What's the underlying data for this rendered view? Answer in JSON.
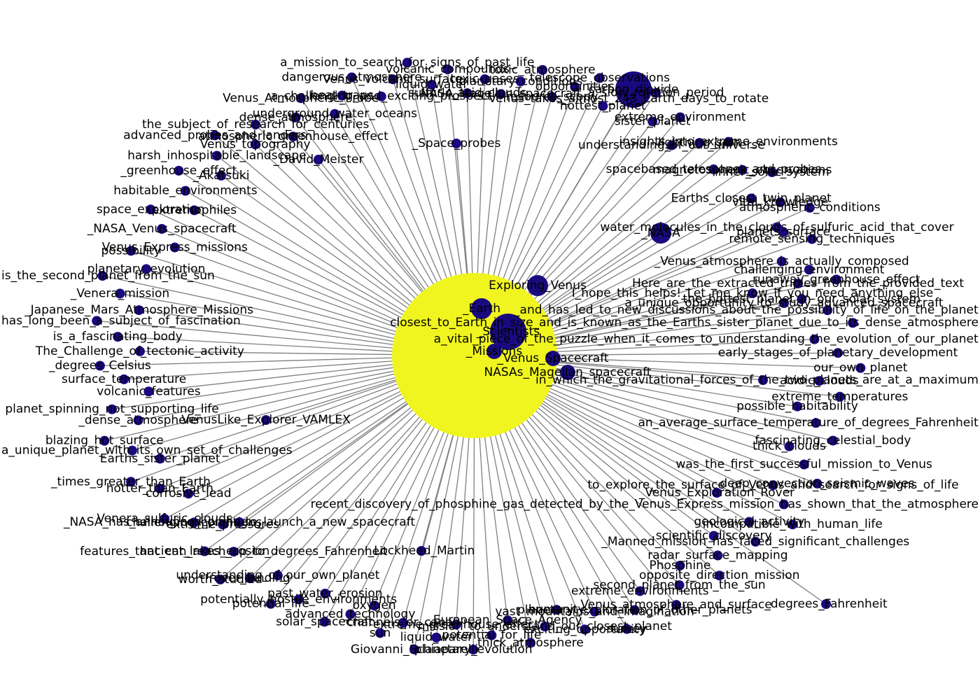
{
  "graph": {
    "hub_color": "#f0f51f",
    "node_color": "#1a0a80",
    "edge_color": "#808080",
    "hub": {
      "label": "Venus",
      "size": "huge"
    },
    "nodes": [
      {
        "label": "Exploring_Venus",
        "size": "large"
      },
      {
        "label": "_Earth",
        "size": "large"
      },
      {
        "label": "_Scientists",
        "size": "xlarge"
      },
      {
        "label": "_Missions",
        "size": "medium"
      },
      {
        "label": "_Venus_Spacecraft",
        "size": "medium"
      },
      {
        "label": "NASAs_Magellan_spacecraft",
        "size": "medium"
      },
      {
        "label": "in_which_the_gravitational_forces_of_the_two_planets_are_at_a_maximum",
        "size": "small"
      },
      {
        "label": "Here_are_the_extracted_triples_from_the_provided_text",
        "size": "small"
      },
      {
        "label": "I_hope_this_helps!_Let_me_know_if_you_need_anything_else",
        "size": "small"
      },
      {
        "label": "a_unique_opportunity_to_study_advanced_spacecraft",
        "size": "small"
      },
      {
        "label": "_NASA",
        "size": "large"
      },
      {
        "label": "water_molecules_in_the_clouds_of_sulfuric_acid_that_cover",
        "size": "small"
      },
      {
        "label": "NASA_Magellan_spacecraft",
        "size": "small"
      },
      {
        "label": "planetary_conditions",
        "size": "small"
      },
      {
        "label": "toxic_atmosphere",
        "size": "small"
      },
      {
        "label": "resource_scopy",
        "size": "small"
      },
      {
        "label": "opportunities",
        "size": "small"
      },
      {
        "label": "telescope_observations",
        "size": "small"
      },
      {
        "label": "hottest_planet",
        "size": "small"
      },
      {
        "label": "Venus_takes_almost_243_Earth_days_to_rotate",
        "size": "small"
      },
      {
        "label": "a_slow_rotation_period",
        "size": "small"
      },
      {
        "label": "sister_planet",
        "size": "small"
      },
      {
        "label": "extreme_environment",
        "size": "small"
      },
      {
        "label": "understanding_of_our_universe",
        "size": "small"
      },
      {
        "label": "lightning_spin",
        "size": "small"
      },
      {
        "label": "insights_into_extreme_environments",
        "size": "small"
      },
      {
        "label": "spacebased_telescopes_and_probes",
        "size": "small"
      },
      {
        "label": "magnetospheric_observations",
        "size": "small"
      },
      {
        "label": "inner_solar_system",
        "size": "small"
      },
      {
        "label": "Earths_closest_twin_planet",
        "size": "small"
      },
      {
        "label": "vital_knowledge",
        "size": "small"
      },
      {
        "label": "_Venus_Exploration_Rover",
        "size": "small"
      },
      {
        "label": "atmospheric_conditions",
        "size": "small"
      },
      {
        "label": "planets_surface",
        "size": "small"
      },
      {
        "label": "remote_sensing_techniques",
        "size": "small"
      },
      {
        "label": "_Venus_atmosphere_is_actually_composed",
        "size": "small"
      },
      {
        "label": "challenging_environment",
        "size": "small"
      },
      {
        "label": "runaway_greenhouse_effect",
        "size": "small"
      },
      {
        "label": "the_hottest_planet_in_our_solar_system",
        "size": "small"
      },
      {
        "label": "_and_has_led_to_new_discussions_about_the_possibility_of_life_on_the_planet",
        "size": "small"
      },
      {
        "label": "_degrees_Fahrenheit",
        "size": "small"
      },
      {
        "label": "_Lockheed_Martin",
        "size": "small"
      },
      {
        "label": "closest_to_Earth_in_size_and_is_known_as_the_Earths_sister_planet_due_to_its_dense_atmosphere",
        "size": "small"
      },
      {
        "label": "a_vital_piece_of_the_puzzle_when_it_comes_to_understanding_the_evolution_of_our_planet",
        "size": "small"
      },
      {
        "label": "early_stages_of_planetary_development",
        "size": "small"
      },
      {
        "label": "our_own_planet",
        "size": "small"
      },
      {
        "label": "acidic_clouds",
        "size": "small"
      },
      {
        "label": "extreme_temperatures",
        "size": "small"
      },
      {
        "label": "possible_habitability",
        "size": "small"
      },
      {
        "label": "an_average_surface_temperature_of_degrees_Fahrenheit",
        "size": "small"
      },
      {
        "label": "fascinating_celestial_body",
        "size": "small"
      },
      {
        "label": "thick_clouds",
        "size": "small"
      },
      {
        "label": "was_the_first_successful_mission_to_Venus",
        "size": "small"
      },
      {
        "label": "deep_convection_seismic_waves",
        "size": "small"
      },
      {
        "label": "to_explore_the_surface_of_Venus_and_search_for_signs_of_life",
        "size": "small"
      },
      {
        "label": "_NASA_has_announced_plans_to_launch_a_new_spacecraft",
        "size": "small"
      },
      {
        "label": "recent_discovery_of_phosphine_gas_detected_by_the_Venus_Express_mission_has_shown_that_the_atmosphere",
        "size": "small"
      },
      {
        "label": "incompatible_with_human_life",
        "size": "small"
      },
      {
        "label": "geological_activity",
        "size": "small"
      },
      {
        "label": "_Manned_mission_has_faced_significant_challenges",
        "size": "small"
      },
      {
        "label": "scientific_discovery",
        "size": "small"
      },
      {
        "label": "radar_surface_mapping",
        "size": "small"
      },
      {
        "label": "opposite_direction_mission",
        "size": "small"
      },
      {
        "label": "Phosphine",
        "size": "small"
      },
      {
        "label": "second_planet_from_the_sun",
        "size": "small"
      },
      {
        "label": "Venus_atmosphere_and_surface",
        "size": "small"
      },
      {
        "label": "extreme_environments",
        "size": "small"
      },
      {
        "label": "VenusLike_Explorer_VAMLEX",
        "size": "small"
      },
      {
        "label": "planetary_exploration_of_other_planets",
        "size": "small"
      },
      {
        "label": "survey",
        "size": "small"
      },
      {
        "label": "vast_mountains_and_imagination",
        "size": "small"
      },
      {
        "label": "exciting_opportunity",
        "size": "small"
      },
      {
        "label": "humanity",
        "size": "small"
      },
      {
        "label": "mission_to_understand_our_closest_planet",
        "size": "small"
      },
      {
        "label": "thick_atmosphere",
        "size": "small"
      },
      {
        "label": "European_Space_Agency",
        "size": "small"
      },
      {
        "label": "potential_for_life",
        "size": "small"
      },
      {
        "label": "planetary_evolution",
        "size": "small"
      },
      {
        "label": "extreme_greenhouse_effect",
        "size": "small"
      },
      {
        "label": "liquid_water",
        "size": "small"
      },
      {
        "label": "Giovanni_Schiaparelli",
        "size": "small"
      },
      {
        "label": "channels_or_canali",
        "size": "small"
      },
      {
        "label": "sun",
        "size": "small"
      },
      {
        "label": "oxygen",
        "size": "small"
      },
      {
        "label": "advanced_technology",
        "size": "small"
      },
      {
        "label": "solar_spacecraft",
        "size": "small"
      },
      {
        "label": "past_water_erosion",
        "size": "small"
      },
      {
        "label": "potentially_hostile_environments",
        "size": "small"
      },
      {
        "label": "potential_life",
        "size": "small"
      },
      {
        "label": "understanding_of_our_own_planet",
        "size": "small"
      },
      {
        "label": "rover_landing",
        "size": "small"
      },
      {
        "label": "worth_studied",
        "size": "small"
      },
      {
        "label": "features_that_can_reach_up_to_degrees_Fahrenheit",
        "size": "small"
      },
      {
        "label": "ancient_lakes_erosion",
        "size": "small"
      },
      {
        "label": "extreme_pressures",
        "size": "small"
      },
      {
        "label": "challenging_conditions",
        "size": "small"
      },
      {
        "label": "Venera_sulfuric_clouds",
        "size": "small"
      },
      {
        "label": "corrosive_lead",
        "size": "small"
      },
      {
        "label": "hotter_than_Earth",
        "size": "small"
      },
      {
        "label": "_times_greater_than_Earth",
        "size": "small"
      },
      {
        "label": "Earths_sister_planet",
        "size": "small"
      },
      {
        "label": "_David_Meister",
        "size": "small"
      },
      {
        "label": "a_unique_planet_with_its_own_set_of_challenges",
        "size": "small"
      },
      {
        "label": "blazing_hot_surface",
        "size": "small"
      },
      {
        "label": "_dense_atmosphere",
        "size": "small"
      },
      {
        "label": "planet_spinning_not_supporting_life",
        "size": "small"
      },
      {
        "label": "volcanic_features",
        "size": "small"
      },
      {
        "label": "surface_temperature",
        "size": "small"
      },
      {
        "label": "_degrees_Celsius",
        "size": "small"
      },
      {
        "label": "The_Challenge_of_tectonic_activity",
        "size": "small"
      },
      {
        "label": "is_a_fascinating_body",
        "size": "small"
      },
      {
        "label": "has_long_been_a_subject_of_fascination",
        "size": "small"
      },
      {
        "label": "_Space_probes",
        "size": "small"
      },
      {
        "label": "_Japanese_Mars_Atmosphere_Missions",
        "size": "small"
      },
      {
        "label": "_Venera_mission",
        "size": "small"
      },
      {
        "label": "is_the_second_planet_from_the_sun",
        "size": "small"
      },
      {
        "label": "carbon_dioxide",
        "size": "xlarge"
      },
      {
        "label": "planetary_evolution",
        "size": "small"
      },
      {
        "label": "possibility",
        "size": "small"
      },
      {
        "label": "Venus_Express_missions",
        "size": "small"
      },
      {
        "label": "_NASA_Venus_spacecraft",
        "size": "small"
      },
      {
        "label": "space_exploration",
        "size": "small"
      },
      {
        "label": "extremophiles",
        "size": "small"
      },
      {
        "label": "habitable_environments",
        "size": "small"
      },
      {
        "label": "_greenhouse_effect",
        "size": "small"
      },
      {
        "label": "_Akatsuki",
        "size": "small"
      },
      {
        "label": "harsh_inhospitable_landscape",
        "size": "small"
      },
      {
        "label": "advanced_probes_and_landers",
        "size": "small"
      },
      {
        "label": "Venus_topography",
        "size": "small"
      },
      {
        "label": "the_subject_of_research_for_centuries",
        "size": "small"
      },
      {
        "label": "atmospheric_greenhouse_effect",
        "size": "small"
      },
      {
        "label": "dense_atmosphere",
        "size": "small"
      },
      {
        "label": "Venus_Atmospheric_Probe",
        "size": "small"
      },
      {
        "label": "underground_water_oceans",
        "size": "small"
      },
      {
        "label": "heat_traps",
        "size": "small"
      },
      {
        "label": "dangerous_atmosphere",
        "size": "small"
      },
      {
        "label": "a_challenging_and_exciting_prospect",
        "size": "small"
      },
      {
        "label": "Venus_volcanic_surface",
        "size": "small"
      },
      {
        "label": "a_mission_to_search_for_signs_of_past_life",
        "size": "small"
      },
      {
        "label": "liquid_water",
        "size": "small"
      },
      {
        "label": "volcanic_compounds",
        "size": "small"
      },
      {
        "label": "sulfuric_acid_clouds",
        "size": "small"
      },
      {
        "label": "toxic_gases",
        "size": "small"
      }
    ]
  }
}
